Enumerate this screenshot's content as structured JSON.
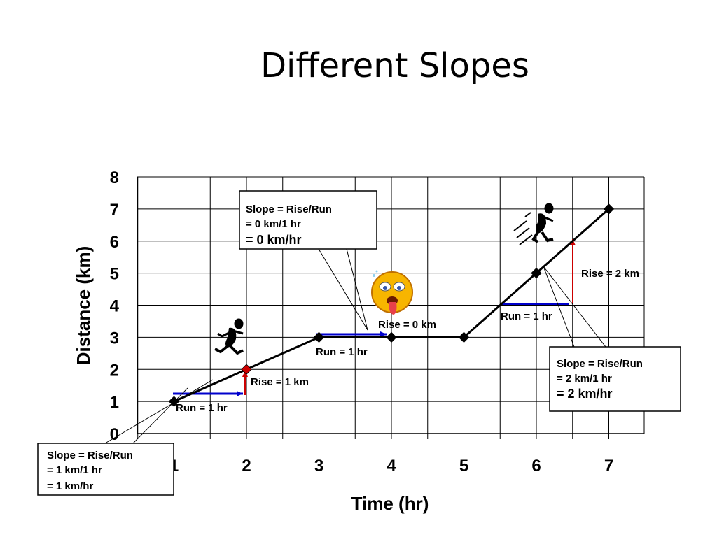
{
  "title": "Different Slopes",
  "chart_data": {
    "type": "line",
    "xlabel": "Time (hr)",
    "ylabel": "Distance (km)",
    "xlim": [
      0,
      7
    ],
    "ylim": [
      0,
      8
    ],
    "x_ticks": [
      "1",
      "2",
      "3",
      "4",
      "5",
      "6",
      "7"
    ],
    "y_ticks": [
      "0",
      "1",
      "2",
      "3",
      "4",
      "5",
      "6",
      "7",
      "8"
    ],
    "grid": true,
    "series": [
      {
        "x": [
          1,
          2,
          3,
          4,
          5,
          6,
          7
        ],
        "y": [
          1,
          2,
          3,
          3,
          3,
          5,
          7
        ]
      }
    ],
    "annotations": {
      "run1": "Run = 1 hr",
      "rise1": "Rise = 1 km",
      "run2": "Run = 1 hr",
      "rise2": "Rise = 0 km",
      "run3": "Run = 1 hr",
      "rise3": "Rise = 2 km"
    },
    "callouts": [
      {
        "line1": "Slope = Rise/Run",
        "line2": "= 1 km/1 hr",
        "line3": "= 1 km/hr"
      },
      {
        "line1": "Slope = Rise/Run",
        "line2": "= 0 km/1 hr",
        "line3": "= 0 km/hr"
      },
      {
        "line1": "Slope = Rise/Run",
        "line2": "= 2 km/1 hr",
        "line3": "= 2 km/hr"
      }
    ],
    "colors": {
      "line": "#000000",
      "run_arrow": "#0000cc",
      "rise_arrow": "#cc0000",
      "grid": "#000000",
      "highlight_point": "#cc0000"
    }
  }
}
